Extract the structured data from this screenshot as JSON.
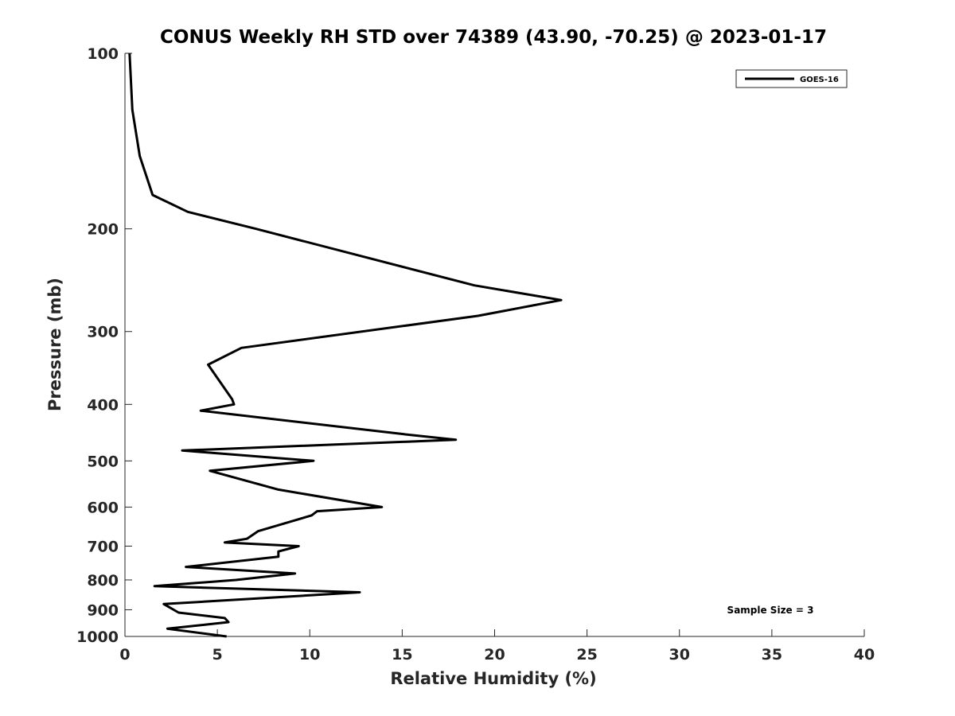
{
  "chart_data": {
    "type": "line",
    "title": "CONUS Weekly RH STD over 74389 (43.90, -70.25) @ 2023-01-17",
    "xlabel": "Relative Humidity (%)",
    "ylabel": "Pressure (mb)",
    "xlim": [
      0,
      40
    ],
    "ylim": [
      100,
      1000
    ],
    "y_scale": "log",
    "y_reversed": true,
    "x_ticks": [
      0,
      5,
      10,
      15,
      20,
      25,
      30,
      35,
      40
    ],
    "y_ticks": [
      100,
      200,
      300,
      400,
      500,
      600,
      700,
      800,
      900,
      1000
    ],
    "grid": false,
    "legend_position": "top-right",
    "annotation": "Sample Size = 3",
    "series": [
      {
        "name": "GOES-16",
        "color": "#000000",
        "points": [
          [
            0.25,
            100
          ],
          [
            0.4,
            125
          ],
          [
            0.8,
            150
          ],
          [
            1.5,
            175
          ],
          [
            3.4,
            187
          ],
          [
            7.1,
            200
          ],
          [
            18.9,
            250
          ],
          [
            23.6,
            265
          ],
          [
            19.1,
            282
          ],
          [
            6.3,
            320
          ],
          [
            4.5,
            342
          ],
          [
            5.8,
            392
          ],
          [
            5.9,
            400
          ],
          [
            4.1,
            410
          ],
          [
            15.1,
            450
          ],
          [
            17.9,
            460
          ],
          [
            3.1,
            480
          ],
          [
            10.2,
            500
          ],
          [
            4.6,
            520
          ],
          [
            8.3,
            560
          ],
          [
            13.9,
            600
          ],
          [
            10.4,
            610
          ],
          [
            10.1,
            620
          ],
          [
            7.2,
            660
          ],
          [
            6.6,
            680
          ],
          [
            5.4,
            690
          ],
          [
            9.4,
            700
          ],
          [
            8.3,
            715
          ],
          [
            8.3,
            730
          ],
          [
            3.3,
            760
          ],
          [
            9.2,
            780
          ],
          [
            6.0,
            800
          ],
          [
            1.6,
            820
          ],
          [
            12.7,
            840
          ],
          [
            2.1,
            880
          ],
          [
            2.9,
            910
          ],
          [
            5.4,
            930
          ],
          [
            5.6,
            945
          ],
          [
            2.3,
            970
          ],
          [
            5.5,
            1000
          ]
        ]
      }
    ]
  }
}
